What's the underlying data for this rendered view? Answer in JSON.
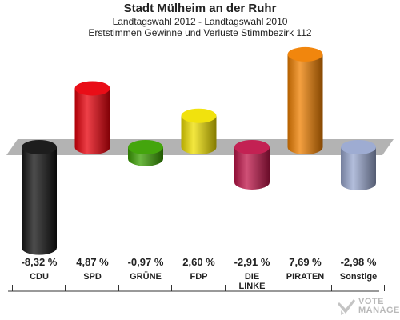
{
  "header": {
    "title": "Stadt Mülheim an der Ruhr",
    "subtitle1": "Landtagswahl 2012 - Landtagswahl 2010",
    "subtitle2": "Erststimmen Gewinne und Verluste Stimmbezirk 112"
  },
  "chart_data": {
    "type": "bar",
    "title": "Stadt Mülheim an der Ruhr",
    "subtitle": "Landtagswahl 2012 - Landtagswahl 2010 / Erststimmen Gewinne und Verluste Stimmbezirk 112",
    "categories": [
      "CDU",
      "SPD",
      "GRÜNE",
      "FDP",
      "DIE LINKE",
      "PIRATEN",
      "Sonstige"
    ],
    "category_lines": [
      [
        "CDU"
      ],
      [
        "SPD"
      ],
      [
        "GRÜNE"
      ],
      [
        "FDP"
      ],
      [
        "DIE",
        "LINKE"
      ],
      [
        "PIRATEN"
      ],
      [
        "Sonstige"
      ]
    ],
    "values": [
      -8.32,
      4.87,
      -0.97,
      2.6,
      -2.91,
      7.69,
      -2.98
    ],
    "value_labels": [
      "-8,32 %",
      "4,87 %",
      "-0,97 %",
      "2,60 %",
      "-2,91 %",
      "7,69 %",
      "-2,98 %"
    ],
    "colors": [
      "#111111",
      "#e8000b",
      "#3aa000",
      "#f0e000",
      "#c0154a",
      "#f08000",
      "#99a8d0"
    ],
    "xlabel": "",
    "ylabel": "",
    "ylim": [
      -8.32,
      7.69
    ],
    "grid": false,
    "legend": "none"
  },
  "watermark": {
    "line1": "VOTE",
    "line2": "MANAGER",
    "icon": "vote-manager-logo-icon"
  }
}
